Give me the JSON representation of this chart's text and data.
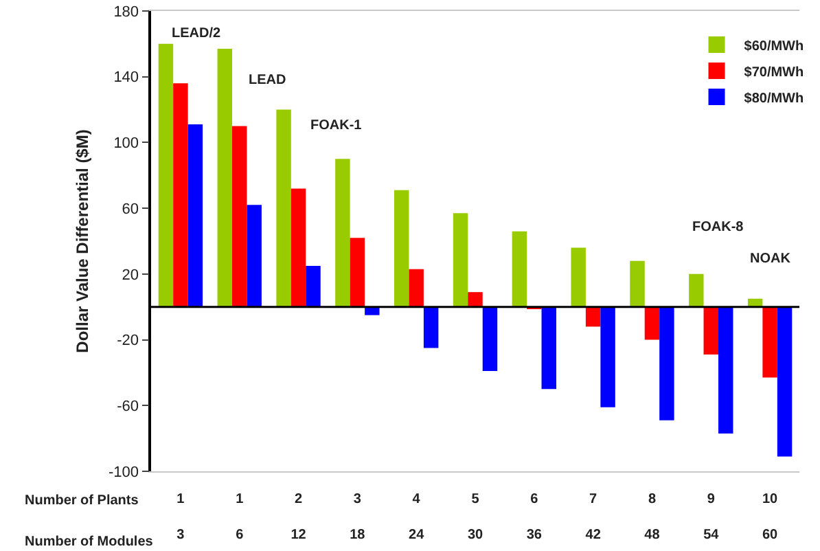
{
  "chart_data": {
    "type": "bar",
    "ylabel": "Dollar Value Differential ($M)",
    "xlabel": "Number of Plants",
    "categories": [
      "1\n3",
      "1\n6",
      "2\n12",
      "3\n18",
      "4\n24",
      "5\n30",
      "6\n36",
      "7\n42",
      "8\n48",
      "9\n54",
      "10\n60"
    ],
    "series": [
      {
        "name": "$60/MWh",
        "color": "#99cc00",
        "values": [
          160,
          157,
          120,
          90,
          71,
          57,
          46,
          36,
          28,
          20,
          5
        ]
      },
      {
        "name": "$70/MWh",
        "color": "#ff0000",
        "values": [
          136,
          110,
          72,
          42,
          23,
          9,
          -1,
          -12,
          -20,
          -29,
          -43
        ]
      },
      {
        "name": "$80/MWh",
        "color": "#0000ff",
        "values": [
          111,
          62,
          25,
          -5,
          -25,
          -39,
          -50,
          -61,
          -69,
          -77,
          -91
        ]
      }
    ],
    "ylim": [
      -100,
      180
    ],
    "yticks": [
      -100,
      -60,
      -20,
      20,
      60,
      100,
      140,
      180
    ],
    "grid": false,
    "legend": "top right",
    "ref_lines": [
      {
        "axis": "y",
        "value": 0,
        "color": "#000000"
      }
    ],
    "annotations": [
      "LEAD/2",
      "LEAD",
      "FOAK-1",
      "FOAK-8",
      "NOAK",
      "Number of Modules"
    ]
  }
}
